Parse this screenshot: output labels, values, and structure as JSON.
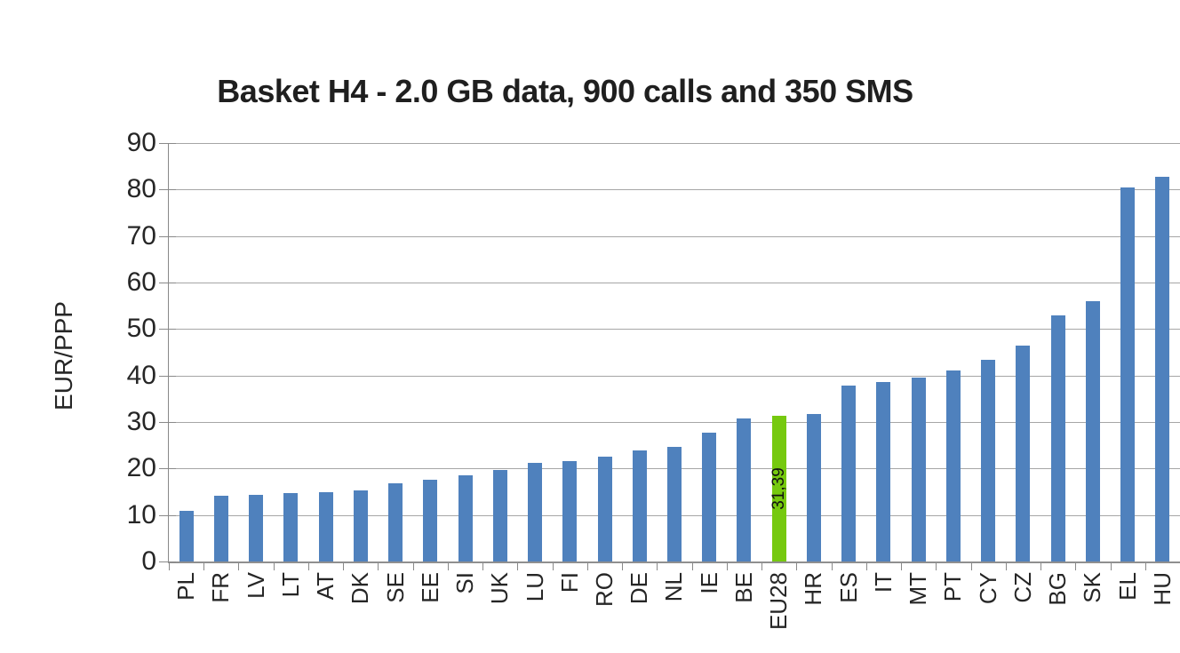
{
  "chart": {
    "title": "Basket H4 - 2.0 GB data, 900 calls and 350 SMS",
    "ylabel": "EUR/PPP"
  },
  "chart_data": {
    "type": "bar",
    "title": "Basket H4 - 2.0 GB data, 900 calls and 350 SMS",
    "xlabel": "",
    "ylabel": "EUR/PPP",
    "ylim": [
      0,
      90
    ],
    "yticks": [
      0,
      10,
      20,
      30,
      40,
      50,
      60,
      70,
      80,
      90
    ],
    "grid": true,
    "legend_position": "none",
    "categories": [
      "PL",
      "FR",
      "LV",
      "LT",
      "AT",
      "DK",
      "SE",
      "EE",
      "SI",
      "UK",
      "LU",
      "FI",
      "RO",
      "DE",
      "NL",
      "IE",
      "BE",
      "EU28",
      "HR",
      "ES",
      "IT",
      "MT",
      "PT",
      "CY",
      "CZ",
      "BG",
      "SK",
      "EL",
      "HU"
    ],
    "values": [
      10.9,
      14.2,
      14.4,
      14.7,
      14.9,
      15.3,
      16.8,
      17.6,
      18.6,
      19.6,
      21.2,
      21.5,
      22.6,
      23.9,
      24.7,
      27.8,
      30.8,
      31.39,
      31.7,
      37.9,
      38.6,
      39.5,
      41.0,
      43.3,
      46.5,
      52.9,
      56.0,
      80.5,
      82.8
    ],
    "highlight": {
      "category": "EU28",
      "value": 31.39,
      "value_label": "31,39",
      "color": "#76C90F"
    },
    "bar_color": "#4F81BD",
    "gridline_color": "#A6A6A6",
    "axis_color": "#898989",
    "text_color": "#262626"
  }
}
